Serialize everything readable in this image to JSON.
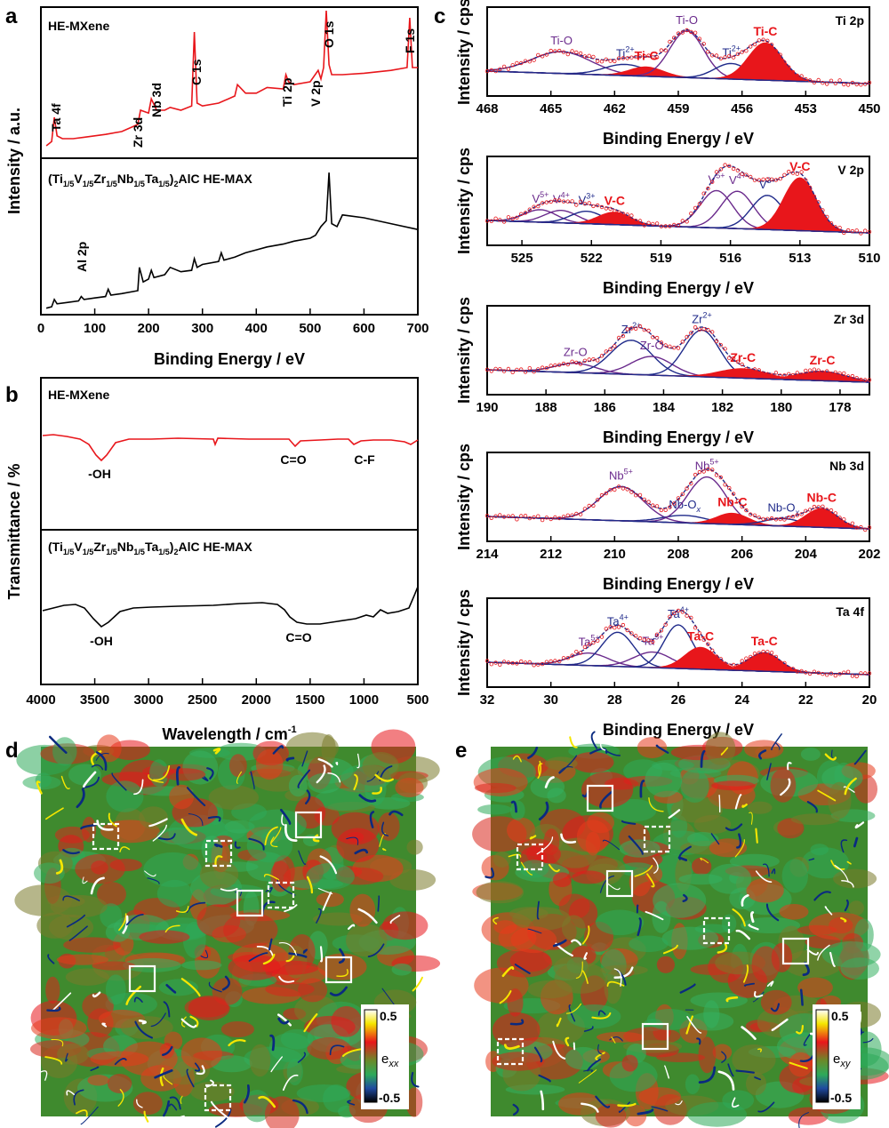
{
  "panels": {
    "a": "a",
    "b": "b",
    "c": "c",
    "d": "d",
    "e": "e"
  },
  "chart_data": [
    {
      "id": "a",
      "type": "line",
      "xlabel": "Binding Energy / eV",
      "ylabel": "Intensity / a.u.",
      "xlim": [
        0,
        700
      ],
      "xticks": [
        0,
        100,
        200,
        300,
        400,
        500,
        600,
        700
      ],
      "series": [
        {
          "name": "HE-MXene",
          "color": "#e8161b",
          "x": [
            10,
            20,
            25,
            30,
            40,
            60,
            80,
            100,
            120,
            150,
            180,
            185,
            200,
            205,
            215,
            230,
            240,
            260,
            280,
            285,
            290,
            300,
            330,
            360,
            365,
            380,
            400,
            420,
            450,
            455,
            460,
            470,
            500,
            515,
            520,
            525,
            530,
            535,
            540,
            560,
            600,
            650,
            680,
            685,
            690,
            700
          ],
          "y": [
            0.05,
            0.08,
            0.25,
            0.12,
            0.1,
            0.1,
            0.11,
            0.12,
            0.13,
            0.15,
            0.2,
            0.3,
            0.28,
            0.38,
            0.3,
            0.3,
            0.32,
            0.3,
            0.33,
            0.85,
            0.35,
            0.33,
            0.35,
            0.4,
            0.48,
            0.42,
            0.42,
            0.46,
            0.45,
            0.55,
            0.5,
            0.48,
            0.5,
            0.58,
            0.52,
            0.6,
            1.0,
            0.62,
            0.55,
            0.55,
            0.56,
            0.58,
            0.6,
            0.95,
            0.6,
            0.6
          ]
        },
        {
          "name": "(Ti1/5V1/5Zr1/5Nb1/5Ta1/5)2AlC HE-MAX",
          "color": "#000000",
          "x": [
            10,
            20,
            25,
            30,
            50,
            70,
            75,
            80,
            100,
            120,
            125,
            130,
            150,
            180,
            183,
            190,
            200,
            205,
            210,
            230,
            240,
            260,
            280,
            285,
            290,
            300,
            330,
            335,
            340,
            360,
            380,
            400,
            420,
            450,
            470,
            500,
            510,
            520,
            530,
            535,
            540,
            550,
            560,
            600,
            650,
            700
          ],
          "y": [
            0.02,
            0.03,
            0.08,
            0.05,
            0.06,
            0.07,
            0.1,
            0.08,
            0.09,
            0.1,
            0.15,
            0.11,
            0.12,
            0.14,
            0.3,
            0.2,
            0.22,
            0.28,
            0.23,
            0.25,
            0.3,
            0.27,
            0.28,
            0.36,
            0.3,
            0.32,
            0.34,
            0.4,
            0.35,
            0.37,
            0.4,
            0.42,
            0.44,
            0.46,
            0.48,
            0.5,
            0.52,
            0.58,
            0.62,
            0.95,
            0.6,
            0.58,
            0.66,
            0.64,
            0.6,
            0.56
          ]
        }
      ],
      "annotations": [
        "Ta 4f",
        "Zr 3d",
        "Nb 3d",
        "C 1s",
        "Ti 2p",
        "V 2p",
        "O 1s",
        "F 1s",
        "Al 2p"
      ],
      "series_labels": {
        "top": "HE-MXene",
        "bottom_main": "(Ti",
        "s1": "1/5",
        "v": "V",
        "z": "Zr",
        "n": "Nb",
        "t": "Ta",
        "close": ")",
        "two": "2",
        "tail": "AlC HE-MAX"
      }
    },
    {
      "id": "b",
      "type": "line",
      "xlabel": "Wavelength / cm",
      "xlabel_sup": "-1",
      "ylabel": "Transmittance / %",
      "xlim": [
        4000,
        500
      ],
      "xticks": [
        4000,
        3500,
        3000,
        2500,
        2000,
        1500,
        1000,
        500
      ],
      "annotations": {
        "oh1": "-OH",
        "co1": "C=O",
        "cf": "C-F",
        "oh2": "-OH",
        "co2": "C=O"
      }
    },
    {
      "id": "c",
      "type": "line",
      "xlabel": "Binding Energy / eV",
      "ylabel": "Intensity / cps",
      "subplots": [
        {
          "title": "Ti 2p",
          "xlim": [
            468,
            450
          ],
          "xticks": [
            468,
            465,
            462,
            459,
            456,
            453,
            450
          ],
          "peaks": [
            {
              "label": "Ti-O",
              "center": 464.5,
              "color": "#6a2a8c",
              "amp": 0.35,
              "w": 1.4
            },
            {
              "label": "Ti",
              "sup": "2+",
              "center": 461.5,
              "color": "#1f2a8a",
              "amp": 0.18,
              "w": 1.0
            },
            {
              "label": "Ti-C",
              "center": 460.5,
              "color": "#e8161b",
              "amp": 0.15,
              "w": 0.8,
              "fill": true
            },
            {
              "label": "Ti-O",
              "center": 458.6,
              "color": "#6a2a8c",
              "amp": 0.75,
              "w": 0.8
            },
            {
              "label": "Ti",
              "sup": "2+",
              "center": 456.5,
              "color": "#1f2a8a",
              "amp": 0.25,
              "w": 0.8
            },
            {
              "label": "Ti-C",
              "center": 454.9,
              "color": "#e8161b",
              "amp": 0.6,
              "w": 0.8,
              "fill": true
            }
          ]
        },
        {
          "title": "V 2p",
          "xlim": [
            526.5,
            510
          ],
          "xticks": [
            525,
            522,
            519,
            516,
            513,
            510
          ],
          "peaks": [
            {
              "label": "V",
              "sup": "5+",
              "center": 524.2,
              "color": "#6a2a8c",
              "amp": 0.2,
              "w": 0.7
            },
            {
              "label": "V",
              "sup": "4+",
              "center": 523.3,
              "color": "#6a2a8c",
              "amp": 0.2,
              "w": 0.7
            },
            {
              "label": "V",
              "sup": "3+",
              "center": 522.2,
              "color": "#1f2a8a",
              "amp": 0.2,
              "w": 0.7
            },
            {
              "label": "V-C",
              "center": 521.0,
              "color": "#e8161b",
              "amp": 0.2,
              "w": 0.7,
              "fill": true
            },
            {
              "label": "V",
              "sup": "5+",
              "center": 516.6,
              "color": "#6a2a8c",
              "amp": 0.6,
              "w": 0.7
            },
            {
              "label": "V",
              "sup": "4+",
              "center": 515.7,
              "color": "#6a2a8c",
              "amp": 0.6,
              "w": 0.7
            },
            {
              "label": "V",
              "sup": "3+",
              "center": 514.4,
              "color": "#1f2a8a",
              "amp": 0.55,
              "w": 0.7
            },
            {
              "label": "V-C",
              "center": 513.0,
              "color": "#e8161b",
              "amp": 0.85,
              "w": 0.7,
              "fill": true
            }
          ]
        },
        {
          "title": "Zr 3d",
          "xlim": [
            190,
            177
          ],
          "xticks": [
            190,
            188,
            186,
            184,
            182,
            180,
            178
          ],
          "peaks": [
            {
              "label": "Zr-O",
              "center": 187.0,
              "color": "#6a2a8c",
              "amp": 0.15,
              "w": 0.7
            },
            {
              "label": "Zr",
              "sup": "2+",
              "center": 185.1,
              "color": "#1f2a8a",
              "amp": 0.55,
              "w": 0.7
            },
            {
              "label": "Zr-O",
              "center": 184.4,
              "color": "#6a2a8c",
              "amp": 0.3,
              "w": 0.7
            },
            {
              "label": "Zr",
              "sup": "2+",
              "center": 182.7,
              "color": "#1f2a8a",
              "amp": 0.75,
              "w": 0.6
            },
            {
              "label": "Zr-C",
              "center": 181.3,
              "color": "#e8161b",
              "amp": 0.15,
              "w": 0.8,
              "fill": true
            },
            {
              "label": "Zr-C",
              "center": 178.6,
              "color": "#e8161b",
              "amp": 0.15,
              "w": 0.8,
              "fill": true
            }
          ]
        },
        {
          "title": "Nb 3d",
          "xlim": [
            214,
            202
          ],
          "xticks": [
            214,
            212,
            210,
            208,
            206,
            204,
            202
          ],
          "peaks": [
            {
              "label": "Nb",
              "sup": "5+",
              "center": 209.8,
              "color": "#6a2a8c",
              "amp": 0.55,
              "w": 0.7
            },
            {
              "label": "Nb-O",
              "sub": "x",
              "center": 207.8,
              "color": "#1f2a8a",
              "amp": 0.12,
              "w": 0.7
            },
            {
              "label": "Nb",
              "sup": "5+",
              "center": 207.1,
              "color": "#6a2a8c",
              "amp": 0.75,
              "w": 0.6
            },
            {
              "label": "Nb-C",
              "center": 206.3,
              "color": "#e8161b",
              "amp": 0.18,
              "w": 0.5,
              "fill": true
            },
            {
              "label": "Nb-O",
              "sub": "x",
              "center": 204.7,
              "color": "#1f2a8a",
              "amp": 0.12,
              "w": 0.6
            },
            {
              "label": "Nb-C",
              "center": 203.5,
              "color": "#e8161b",
              "amp": 0.3,
              "w": 0.5,
              "fill": true
            }
          ]
        },
        {
          "title": "Ta 4f",
          "xlim": [
            32,
            20
          ],
          "xticks": [
            32,
            30,
            28,
            26,
            24,
            22,
            20
          ],
          "peaks": [
            {
              "label": "Ta",
              "sup": "5+",
              "center": 28.8,
              "color": "#6a2a8c",
              "amp": 0.2,
              "w": 0.6
            },
            {
              "label": "Ta",
              "sup": "4+",
              "center": 27.9,
              "color": "#1f2a8a",
              "amp": 0.55,
              "w": 0.5
            },
            {
              "label": "Ta",
              "sup": "5+",
              "center": 26.8,
              "color": "#6a2a8c",
              "amp": 0.25,
              "w": 0.6
            },
            {
              "label": "Ta",
              "sup": "4+",
              "center": 26.0,
              "color": "#1f2a8a",
              "amp": 0.7,
              "w": 0.45
            },
            {
              "label": "Ta-C",
              "center": 25.3,
              "color": "#e8161b",
              "amp": 0.35,
              "w": 0.5,
              "fill": true
            },
            {
              "label": "Ta-C",
              "center": 23.3,
              "color": "#e8161b",
              "amp": 0.3,
              "w": 0.5,
              "fill": true
            }
          ]
        }
      ]
    },
    {
      "id": "d",
      "type": "heatmap",
      "colorbar": {
        "max": "0.5",
        "min": "-0.5",
        "label": "e",
        "sub": "xx"
      }
    },
    {
      "id": "e",
      "type": "heatmap",
      "colorbar": {
        "max": "0.5",
        "min": "-0.5",
        "label": "e",
        "sub": "xy"
      }
    }
  ],
  "colors": {
    "red": "#e8161b",
    "black": "#000000",
    "navy": "#1f2a8a",
    "purple": "#6a2a8c",
    "green": "#2eaa5a",
    "olive": "#7a7a2a"
  }
}
